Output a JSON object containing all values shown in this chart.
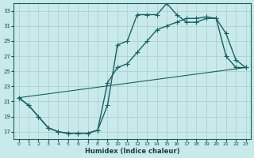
{
  "xlabel": "Humidex (Indice chaleur)",
  "background_color": "#c8eaea",
  "grid_color": "#b0d0d0",
  "line_color": "#1a6060",
  "xlim": [
    -0.5,
    23.5
  ],
  "ylim": [
    16,
    34
  ],
  "yticks": [
    17,
    19,
    21,
    23,
    25,
    27,
    29,
    31,
    33
  ],
  "xticks": [
    0,
    1,
    2,
    3,
    4,
    5,
    6,
    7,
    8,
    9,
    10,
    11,
    12,
    13,
    14,
    15,
    16,
    17,
    18,
    19,
    20,
    21,
    22,
    23
  ],
  "curve_main_x": [
    0,
    1,
    2,
    3,
    4,
    5,
    6,
    7,
    8,
    9,
    10,
    11,
    12,
    13,
    14,
    15,
    16,
    17,
    18,
    19,
    20,
    21,
    22,
    23
  ],
  "curve_main_y": [
    21.5,
    20.5,
    19.0,
    17.5,
    17.0,
    16.8,
    16.8,
    16.8,
    17.2,
    20.5,
    28.5,
    29.0,
    32.5,
    32.5,
    32.5,
    34.0,
    32.5,
    31.5,
    31.5,
    32.0,
    32.0,
    30.0,
    26.5,
    25.5
  ],
  "curve_smooth_x": [
    0,
    1,
    2,
    3,
    4,
    5,
    6,
    7,
    8,
    9,
    10,
    11,
    12,
    13,
    14,
    15,
    16,
    17,
    18,
    19,
    20,
    21,
    22,
    23
  ],
  "curve_smooth_y": [
    21.5,
    20.5,
    19.0,
    17.5,
    17.0,
    16.8,
    16.8,
    16.8,
    17.2,
    23.5,
    25.5,
    26.0,
    27.5,
    29.0,
    30.5,
    31.0,
    31.5,
    32.0,
    32.0,
    32.2,
    32.0,
    27.0,
    25.5,
    25.5
  ],
  "curve_trend_x": [
    0,
    23
  ],
  "curve_trend_y": [
    21.5,
    25.5
  ],
  "marker_size": 2.5,
  "linewidth": 1.0
}
